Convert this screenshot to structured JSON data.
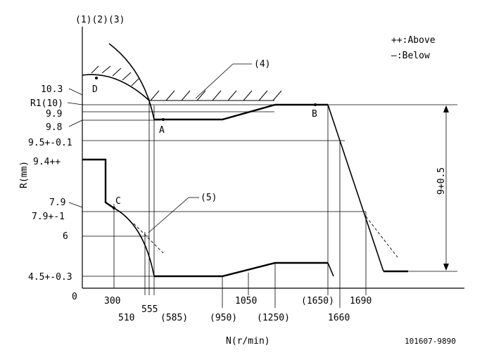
{
  "header": {
    "labels": "(1)(2)(3)"
  },
  "legend": {
    "above": "++:Above",
    "below": "—:Below"
  },
  "axes": {
    "y_label": "R(mm)",
    "x_label": "N(r/min)",
    "origin": "0"
  },
  "y_ticks": {
    "t10_3": "10.3",
    "tR1": "R1(10)",
    "t9_9": "9.9",
    "t9_8": "9.8",
    "t9_5": "9.5+-0.1",
    "t9_4": "9.4++",
    "t7_9": "7.9",
    "t7_9b": "7.9+-1",
    "t6": "6",
    "t4_5": "4.5+-0.3"
  },
  "x_ticks": {
    "n300": "300",
    "n510": "510",
    "n555": "555",
    "n585": "(585)",
    "n950": "(950)",
    "n1050": "1050",
    "n1250": "(1250)",
    "n1650": "(1650)",
    "n1660": "1660",
    "n1690": "1690"
  },
  "points": {
    "a": "A",
    "b": "B",
    "c": "C",
    "d": "D"
  },
  "callouts": {
    "c4": "(4)",
    "c5": "(5)"
  },
  "dimension": {
    "label": "9+0.5"
  },
  "code": {
    "text": "101607-9890"
  }
}
